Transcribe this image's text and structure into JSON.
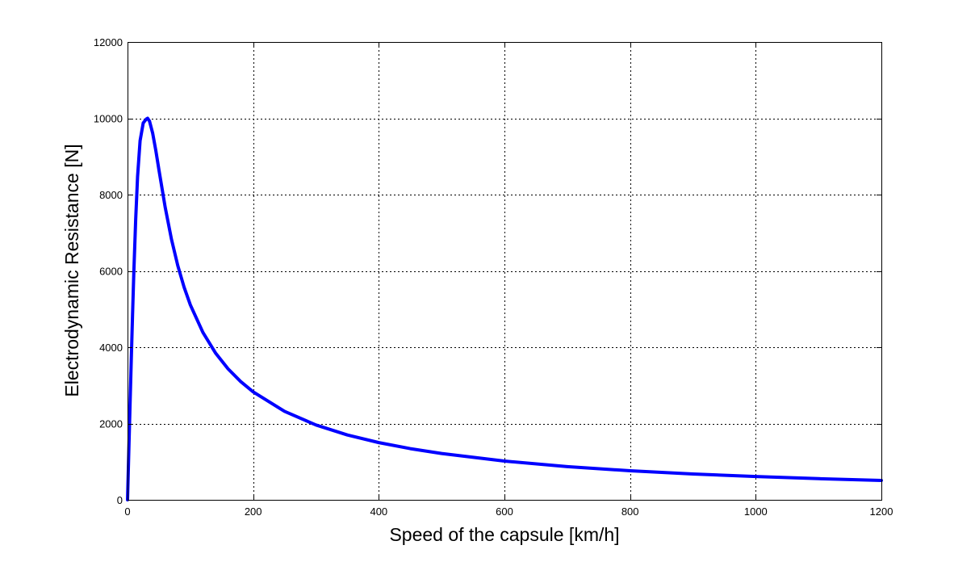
{
  "chart_data": {
    "type": "line",
    "title": "",
    "xlabel": "Speed of the capsule [km/h]",
    "ylabel": "Electrodynamic Resistance [N]",
    "xlim": [
      0,
      1200
    ],
    "ylim": [
      0,
      12000
    ],
    "xticks": [
      0,
      200,
      400,
      600,
      800,
      1000,
      1200
    ],
    "yticks": [
      0,
      2000,
      4000,
      6000,
      8000,
      10000,
      12000
    ],
    "xtick_labels": [
      "0",
      "200",
      "400",
      "600",
      "800",
      "1000",
      "1200"
    ],
    "ytick_labels": [
      "0",
      "2000",
      "4000",
      "6000",
      "8000",
      "10000",
      "12000"
    ],
    "grid": true,
    "grid_style": "dotted",
    "line_color": "#0000ff",
    "series": [
      {
        "x": [
          0,
          1,
          2,
          4,
          6,
          8,
          10,
          13,
          16,
          20,
          25,
          30,
          32,
          35,
          40,
          45,
          50,
          60,
          70,
          80,
          90,
          100,
          120,
          140,
          160,
          180,
          200,
          250,
          300,
          350,
          400,
          450,
          500,
          600,
          700,
          800,
          900,
          1000,
          1100,
          1200
        ],
        "y": [
          0,
          625,
          1249,
          2485,
          3693,
          4853,
          5944,
          7352,
          8472,
          9412,
          9879,
          9981,
          10000,
          9926,
          9611,
          9159,
          8648,
          7663,
          6826,
          6139,
          5576,
          5109,
          4387,
          3850,
          3434,
          3102,
          2830,
          2318,
          1962,
          1700,
          1500,
          1342,
          1214,
          1015,
          871,
          762,
          678,
          611,
          555,
          509
        ]
      }
    ]
  }
}
